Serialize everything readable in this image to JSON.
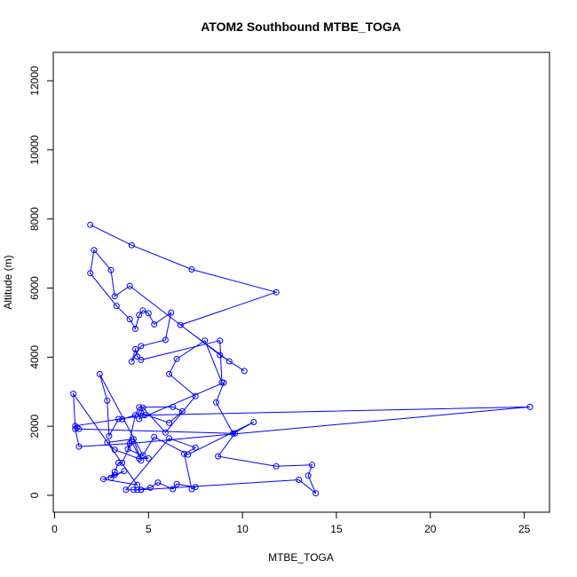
{
  "chart_data": {
    "type": "line",
    "title": "ATOM2 Southbound MTBE_TOGA",
    "xlabel": "MTBE_TOGA",
    "ylabel": "Altitude (m)",
    "xlim": [
      0,
      26
    ],
    "ylim": [
      0,
      12600
    ],
    "x_ticks": [
      0,
      5,
      10,
      15,
      20,
      25
    ],
    "x_tick_labels": [
      "0",
      "5",
      "10",
      "15",
      "20",
      "25"
    ],
    "y_ticks": [
      0,
      2000,
      4000,
      6000,
      8000,
      10000,
      12000
    ],
    "y_tick_labels": [
      "0",
      "2000",
      "4000",
      "6000",
      "8000",
      "10000",
      "12000"
    ],
    "grid": false,
    "legend": false,
    "color": "#0000ff",
    "markers": "open-circle",
    "series": [
      {
        "x": [
          1.9,
          4.1,
          7.3,
          11.8,
          6.7,
          9.3,
          10.1,
          8.8,
          4.0,
          3.2,
          3.0,
          2.1,
          1.9,
          3.3,
          4.0,
          4.3,
          4.5,
          4.7,
          5.0,
          5.3,
          6.2,
          5.9,
          4.6,
          4.1,
          4.3,
          4.4,
          4.6,
          8.8,
          8.9,
          8.0,
          6.5,
          6.1,
          7.5,
          5.9,
          4.7,
          4.5,
          9.0,
          8.6,
          9.5,
          10.6,
          7.1,
          5.3,
          4.7,
          2.4,
          2.8,
          2.9,
          3.4,
          3.6,
          4.6,
          6.1,
          6.8,
          6.3,
          4.5,
          4.3,
          3.9,
          5.0,
          4.5,
          3.2,
          2.8,
          4.2,
          4.6,
          4.1,
          3.6,
          3.4,
          3.2,
          3.0,
          3.7,
          3.2,
          2.6,
          4.4,
          1.0,
          1.1,
          1.3,
          4.0,
          25.3,
          4.8,
          1.1,
          1.2,
          1.3,
          9.6,
          8.7,
          11.8,
          13.7,
          13.5,
          13.9,
          13.0,
          4.6,
          4.4,
          5.1,
          5.5,
          6.3,
          6.5,
          7.5,
          7.3,
          6.9,
          7.5,
          6.1,
          3.8,
          4.2,
          4.6
        ],
        "y": [
          7830,
          7240,
          6540,
          5880,
          4930,
          3880,
          3600,
          4060,
          6060,
          5760,
          6520,
          7100,
          6430,
          5480,
          5100,
          4820,
          5220,
          5350,
          5270,
          4950,
          5290,
          4500,
          4320,
          3870,
          4230,
          4020,
          3920,
          4480,
          3270,
          4480,
          3950,
          3510,
          2870,
          1820,
          2540,
          2210,
          3260,
          2690,
          1790,
          2120,
          1180,
          1690,
          1160,
          3510,
          2740,
          1720,
          2210,
          2200,
          2380,
          2100,
          2430,
          2560,
          2550,
          2320,
          1340,
          1070,
          1060,
          1320,
          1530,
          1630,
          1010,
          1560,
          940,
          940,
          680,
          510,
          700,
          590,
          470,
          300,
          2940,
          1920,
          1410,
          1500,
          2560,
          2320,
          2010,
          1960,
          1920,
          1790,
          1130,
          840,
          880,
          570,
          60,
          450,
          160,
          160,
          220,
          370,
          180,
          330,
          240,
          180,
          1200,
          1380,
          1650,
          160,
          160,
          160
        ]
      }
    ]
  }
}
